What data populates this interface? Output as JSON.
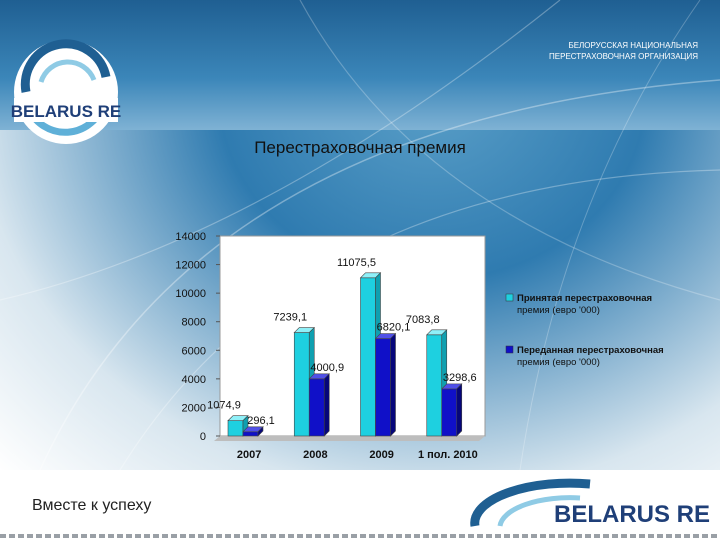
{
  "header": {
    "org_line1": "БЕЛОРУССКАЯ НАЦИОНАЛЬНАЯ",
    "org_line2": "ПЕРЕСТРАХОВОЧНАЯ ОРГАНИЗАЦИЯ",
    "logo_text": "BELARUS RE"
  },
  "page_title": "Перестраховочная премия",
  "footer": {
    "slogan": "Вместе к успеху",
    "logo_text": "BELARUS RE"
  },
  "colors": {
    "accepted": "#1ed0e0",
    "ceded": "#1010c8",
    "brand_blue": "#1f5f92"
  },
  "chart_data": {
    "type": "bar",
    "categories": [
      "2007",
      "2008",
      "2009",
      "1 пол. 2010"
    ],
    "series": [
      {
        "name": "Принятая перестраховочная премия (евро '000)",
        "values": [
          1074.9,
          7239.1,
          11075.5,
          7083.8
        ],
        "labels": [
          "1074,9",
          "7239,1",
          "11075,5",
          "7083,8"
        ]
      },
      {
        "name": "Переданная перестраховочная премия (евро '000)",
        "values": [
          296.1,
          4000.9,
          6820.1,
          3298.6
        ],
        "labels": [
          "296,1",
          "4000,9",
          "6820,1",
          "3298,6"
        ]
      }
    ],
    "ylim": [
      0,
      14000
    ],
    "yticks": [
      "0",
      "2000",
      "4000",
      "6000",
      "8000",
      "10000",
      "12000",
      "14000"
    ],
    "legend_position": "right",
    "grid": false
  }
}
